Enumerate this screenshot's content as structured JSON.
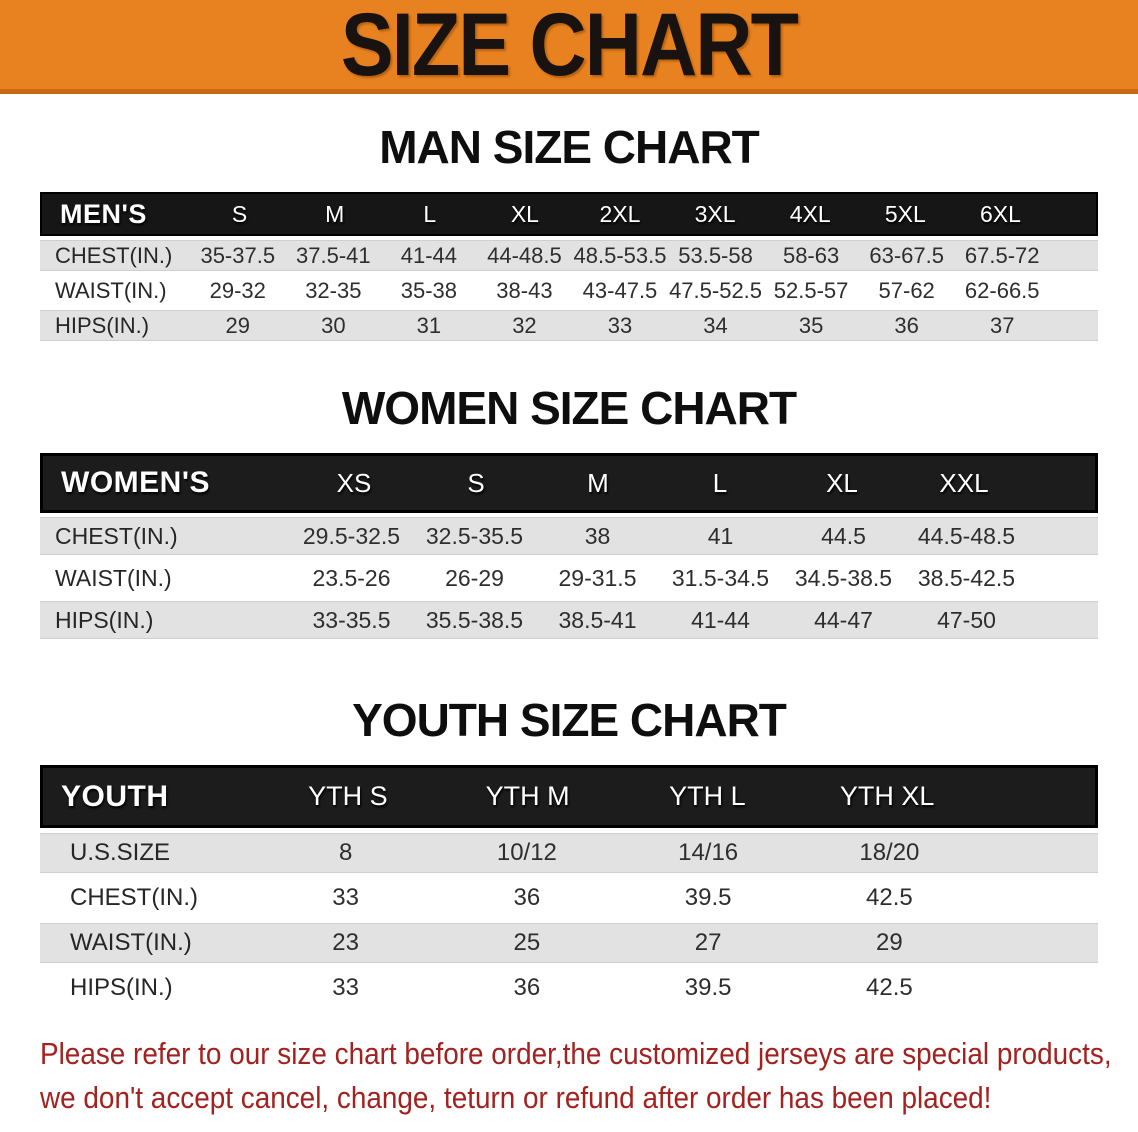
{
  "banner": {
    "title": "SIZE CHART",
    "bg_color": "#E8811F",
    "text_color": "#181210"
  },
  "sections": [
    {
      "heading": "MAN SIZE CHART",
      "table": {
        "label": "MEN'S",
        "columns": [
          "S",
          "M",
          "L",
          "XL",
          "2XL",
          "3XL",
          "4XL",
          "5XL",
          "6XL"
        ],
        "rows": [
          {
            "label": "CHEST(IN.)",
            "values": [
              "35-37.5",
              "37.5-41",
              "41-44",
              "44-48.5",
              "48.5-53.5",
              "53.5-58",
              "58-63",
              "63-67.5",
              "67.5-72"
            ]
          },
          {
            "label": "WAIST(IN.)",
            "values": [
              "29-32",
              "32-35",
              "35-38",
              "38-43",
              "43-47.5",
              "47.5-52.5",
              "52.5-57",
              "57-62",
              "62-66.5"
            ]
          },
          {
            "label": "HIPS(IN.)",
            "values": [
              "29",
              "30",
              "31",
              "32",
              "33",
              "34",
              "35",
              "36",
              "37"
            ]
          }
        ]
      }
    },
    {
      "heading": "WOMEN SIZE CHART",
      "table": {
        "label": "WOMEN'S",
        "columns": [
          "XS",
          "S",
          "M",
          "L",
          "XL",
          "XXL"
        ],
        "rows": [
          {
            "label": "CHEST(IN.)",
            "values": [
              "29.5-32.5",
              "32.5-35.5",
              "38",
              "41",
              "44.5",
              "44.5-48.5"
            ]
          },
          {
            "label": "WAIST(IN.)",
            "values": [
              "23.5-26",
              "26-29",
              "29-31.5",
              "31.5-34.5",
              "34.5-38.5",
              "38.5-42.5"
            ]
          },
          {
            "label": "HIPS(IN.)",
            "values": [
              "33-35.5",
              "35.5-38.5",
              "38.5-41",
              "41-44",
              "44-47",
              "47-50"
            ]
          }
        ]
      }
    },
    {
      "heading": "YOUTH SIZE CHART",
      "table": {
        "label": "YOUTH",
        "columns": [
          "YTH S",
          "YTH M",
          "YTH L",
          "YTH XL"
        ],
        "rows": [
          {
            "label": "U.S.SIZE",
            "values": [
              "8",
              "10/12",
              "14/16",
              "18/20"
            ]
          },
          {
            "label": "CHEST(IN.)",
            "values": [
              "33",
              "36",
              "39.5",
              "42.5"
            ]
          },
          {
            "label": "WAIST(IN.)",
            "values": [
              "23",
              "25",
              "27",
              "29"
            ]
          },
          {
            "label": "HIPS(IN.)",
            "values": [
              "33",
              "36",
              "39.5",
              "42.5"
            ]
          }
        ]
      }
    }
  ],
  "disclaimer": {
    "line1": "Please refer to our size chart before order,the customized jerseys are special products,",
    "line2": "we don't accept cancel, change, teturn or refund after order has been placed!",
    "color": "#A32220"
  },
  "colors": {
    "banner_orange": "#E8811F",
    "banner_edge": "#C8680F",
    "header_black": "#161616",
    "row_gray": "#E2E2E2",
    "row_white": "#FFFFFF",
    "disclaimer_red": "#A32220"
  }
}
